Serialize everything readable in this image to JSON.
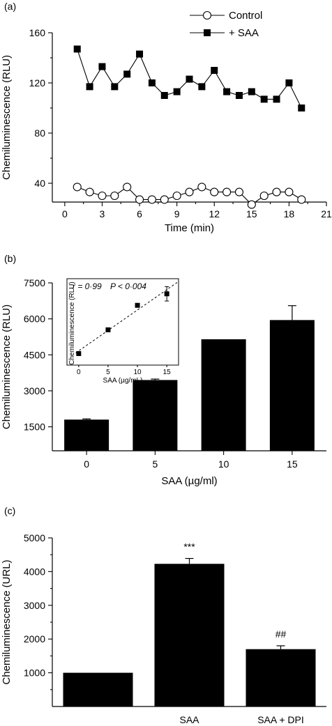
{
  "chart_data": [
    {
      "panel": "(a)",
      "type": "line",
      "xlabel": "Time (min)",
      "ylabel": "Chemiluminescence (RLU)",
      "xlim": [
        -1,
        21
      ],
      "ylim": [
        25,
        160
      ],
      "xticks": [
        0,
        3,
        6,
        9,
        12,
        15,
        18,
        21
      ],
      "yticks": [
        40,
        80,
        120,
        160
      ],
      "legend_position": "top-right",
      "series": [
        {
          "name": "Control",
          "marker": "open-circle",
          "x": [
            1,
            2,
            3,
            4,
            5,
            6,
            7,
            8,
            9,
            10,
            11,
            12,
            13,
            14,
            15,
            16,
            17,
            18,
            19
          ],
          "y": [
            37,
            33,
            30,
            30,
            37,
            27,
            27,
            27,
            30,
            33,
            37,
            33,
            33,
            33,
            23,
            30,
            33,
            33,
            27
          ]
        },
        {
          "name": "+ SAA",
          "marker": "filled-square",
          "x": [
            1,
            2,
            3,
            4,
            5,
            6,
            7,
            8,
            9,
            10,
            11,
            12,
            13,
            14,
            15,
            16,
            17,
            18,
            19
          ],
          "y": [
            147,
            117,
            133,
            117,
            127,
            143,
            120,
            110,
            113,
            123,
            117,
            130,
            113,
            110,
            113,
            107,
            107,
            120,
            100
          ]
        }
      ]
    },
    {
      "panel": "(b)",
      "type": "bar",
      "xlabel": "SAA (µg/ml)",
      "ylabel": "Chemiluminescence (RLU)",
      "categories": [
        "0",
        "5",
        "10",
        "15"
      ],
      "values": [
        1800,
        3450,
        5150,
        5950
      ],
      "errors": [
        30,
        40,
        0,
        600
      ],
      "ylim": [
        500,
        7500
      ],
      "yticks": [
        1500,
        3000,
        4500,
        6000,
        7500
      ],
      "inset": {
        "type": "scatter",
        "xlabel": "SAA (µg/mL)",
        "ylabel": "Chemiluminescence (RLU)",
        "xticks": [
          0,
          5,
          10,
          15
        ],
        "x": [
          0,
          5,
          10,
          15
        ],
        "y": [
          1800,
          3450,
          5150,
          5950
        ],
        "errors": [
          0,
          0,
          0,
          500
        ],
        "fit_line": "dashed",
        "stat_r": "r = 0·99",
        "stat_p": "P < 0·004"
      }
    },
    {
      "panel": "(c)",
      "type": "bar",
      "xlabel": "",
      "ylabel": "Chemiluminescence (URL)",
      "categories": [
        "",
        "SAA",
        "SAA + DPI"
      ],
      "values": [
        1000,
        4230,
        1700
      ],
      "errors": [
        0,
        160,
        100
      ],
      "annotations": [
        "",
        "***",
        "##"
      ],
      "ylim": [
        0,
        5000
      ],
      "yticks": [
        1000,
        2000,
        3000,
        4000,
        5000
      ]
    }
  ]
}
